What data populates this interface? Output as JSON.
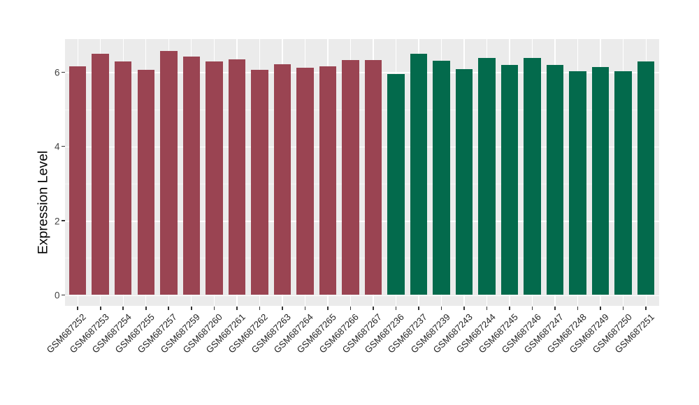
{
  "figure": {
    "background": "#FFFFFF",
    "panel_background": "#EBEBEB",
    "grid_color": "#FFFFFF",
    "tick_color": "#333333",
    "axis_text_color": "#424242",
    "x_label_color": "#1F1F1F"
  },
  "chart_data": {
    "type": "bar",
    "title": "",
    "xlabel": "",
    "ylabel": "Expression Level",
    "ylim": [
      0,
      6.9
    ],
    "yticks": [
      0,
      2,
      4,
      6
    ],
    "yticks_minor": [
      1,
      3,
      5
    ],
    "grid": "on",
    "legend": "none",
    "categories": [
      "GSM687252",
      "GSM687253",
      "GSM687254",
      "GSM687255",
      "GSM687257",
      "GSM687259",
      "GSM687260",
      "GSM687261",
      "GSM687262",
      "GSM687263",
      "GSM687264",
      "GSM687265",
      "GSM687266",
      "GSM687267",
      "GSM687236",
      "GSM687237",
      "GSM687239",
      "GSM687243",
      "GSM687244",
      "GSM687245",
      "GSM687246",
      "GSM687247",
      "GSM687248",
      "GSM687249",
      "GSM687250",
      "GSM687251"
    ],
    "values": [
      6.16,
      6.49,
      6.28,
      6.07,
      6.57,
      6.41,
      6.28,
      6.34,
      6.06,
      6.22,
      6.11,
      6.16,
      6.33,
      6.33,
      5.95,
      6.49,
      6.31,
      6.09,
      6.39,
      6.2,
      6.39,
      6.19,
      6.02,
      6.13,
      6.02,
      6.28
    ],
    "groups": [
      "group1",
      "group1",
      "group1",
      "group1",
      "group1",
      "group1",
      "group1",
      "group1",
      "group1",
      "group1",
      "group1",
      "group1",
      "group1",
      "group1",
      "group2",
      "group2",
      "group2",
      "group2",
      "group2",
      "group2",
      "group2",
      "group2",
      "group2",
      "group2",
      "group2",
      "group2"
    ],
    "group_colors": {
      "group1": "#9A4452",
      "group2": "#036A4C"
    }
  }
}
